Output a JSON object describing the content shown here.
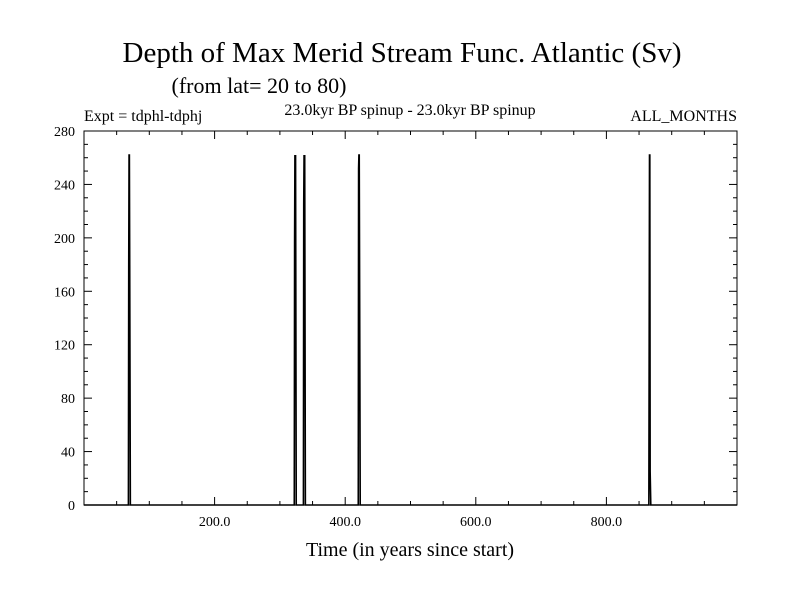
{
  "chart_data": {
    "type": "line",
    "title": "Depth of Max Merid Stream Func. Atlantic (Sv)",
    "subtitle": "(from lat= 20 to 80)",
    "annotations": {
      "left": "Expt = tdphl-tdphj",
      "center": "23.0kyr BP spinup - 23.0kyr BP spinup",
      "right": "ALL_MONTHS"
    },
    "xlabel": "Time (in years since start)",
    "ylabel": "",
    "xlim": [
      0,
      1000
    ],
    "ylim": [
      0,
      280
    ],
    "x_ticks": [
      200,
      400,
      600,
      800
    ],
    "x_tick_labels": [
      "200.0",
      "400.0",
      "600.0",
      "800.0"
    ],
    "y_ticks": [
      0,
      40,
      80,
      120,
      160,
      200,
      240,
      280
    ],
    "y_tick_labels": [
      "0",
      "40",
      "80",
      "120",
      "160",
      "200",
      "240",
      "280"
    ],
    "grid": false,
    "series": [
      {
        "color": "#000000",
        "x": [
          0,
          68,
          68.5,
          69,
          69.5,
          70,
          71,
          322,
          322.5,
          323,
          323.5,
          324,
          325,
          336,
          336.5,
          337,
          337.5,
          338,
          339,
          420,
          420.5,
          421,
          421.5,
          422,
          423,
          865,
          865.5,
          866,
          866.5,
          867,
          868,
          1000
        ],
        "y": [
          0,
          0,
          180,
          262,
          262,
          180,
          0,
          0,
          196,
          262,
          235,
          262,
          0,
          0,
          225,
          262,
          206,
          262,
          0,
          0,
          252,
          262,
          262,
          178,
          0,
          0,
          122,
          262,
          262,
          25,
          0,
          0
        ]
      }
    ]
  }
}
